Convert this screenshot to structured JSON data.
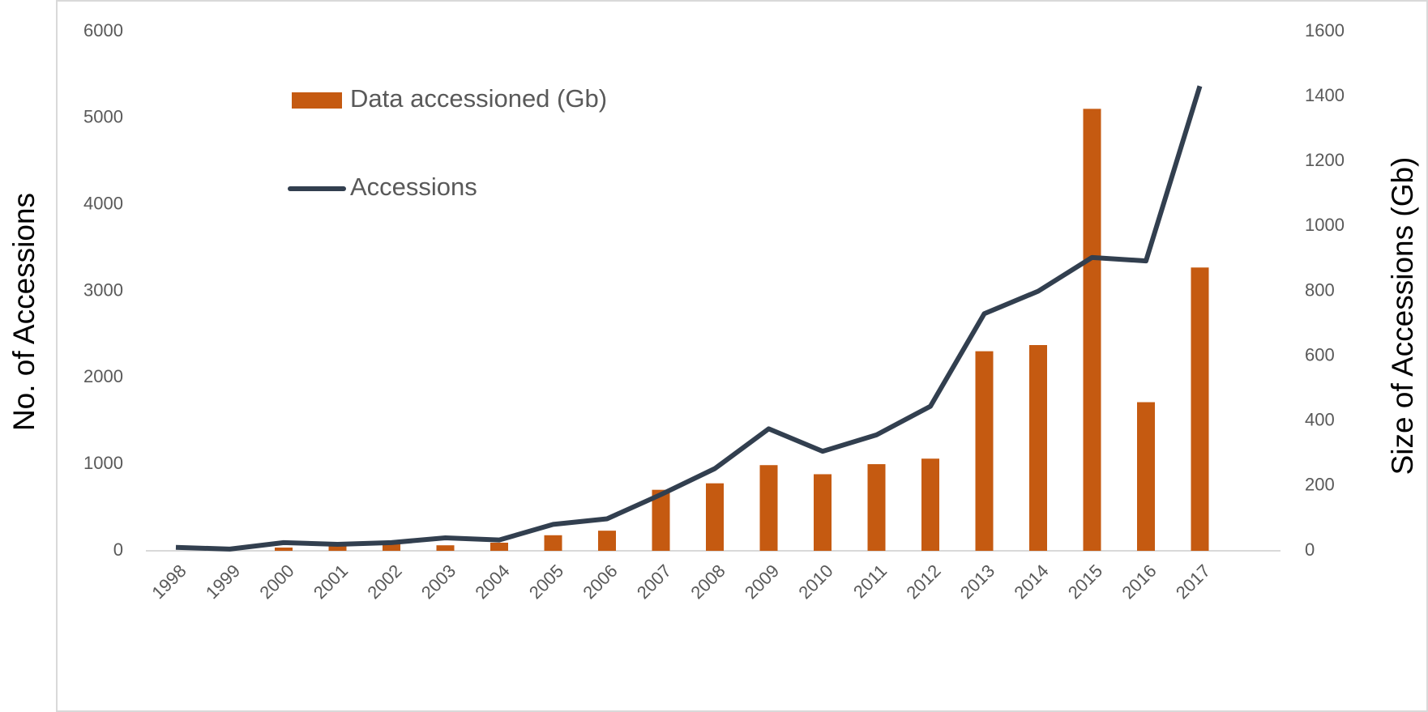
{
  "chart_data": {
    "type": "bar-line",
    "categories": [
      "1998",
      "1999",
      "2000",
      "2001",
      "2002",
      "2003",
      "2004",
      "2005",
      "2006",
      "2007",
      "2008",
      "2009",
      "2010",
      "2011",
      "2012",
      "2013",
      "2014",
      "2015",
      "2016",
      "2017"
    ],
    "series": [
      {
        "name": "Data accessioned (Gb)",
        "type": "bar",
        "axis": "y2",
        "color": "#c55a11",
        "values": [
          0,
          0,
          10,
          20,
          22,
          17,
          25,
          48,
          62,
          188,
          208,
          264,
          236,
          267,
          284,
          615,
          634,
          1362,
          458,
          873
        ]
      },
      {
        "name": "Accessions",
        "type": "line",
        "axis": "y",
        "color": "#323f4f",
        "values": [
          40,
          20,
          95,
          75,
          95,
          150,
          125,
          305,
          370,
          650,
          950,
          1410,
          1150,
          1340,
          1670,
          2740,
          3000,
          3390,
          3350,
          5370
        ]
      }
    ],
    "ylabel": "No. of Accessions",
    "y2label": "Size of Accessions (Gb)",
    "ylim": [
      0,
      6000
    ],
    "yticks": [
      0,
      1000,
      2000,
      3000,
      4000,
      5000,
      6000
    ],
    "y2lim": [
      0,
      1600
    ],
    "y2ticks": [
      0,
      200,
      400,
      600,
      800,
      1000,
      1200,
      1400,
      1600
    ]
  }
}
